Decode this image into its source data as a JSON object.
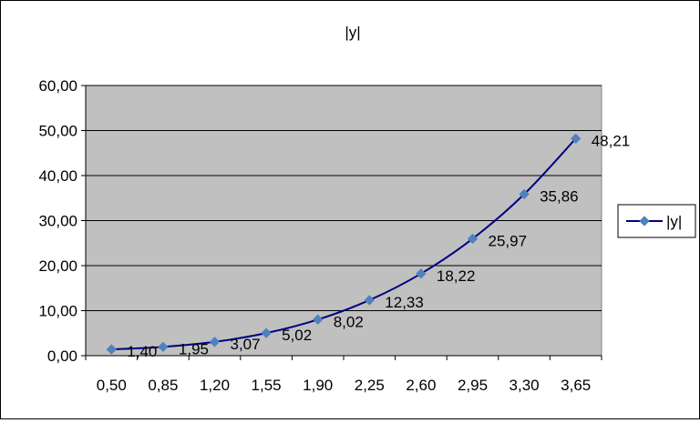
{
  "chart_data": {
    "type": "line",
    "title": "|y|",
    "xlabel": "",
    "ylabel": "",
    "categories": [
      "0,50",
      "0,85",
      "1,20",
      "1,55",
      "1,90",
      "2,25",
      "2,60",
      "2,95",
      "3,30",
      "3,65"
    ],
    "x": [
      0.5,
      0.85,
      1.2,
      1.55,
      1.9,
      2.25,
      2.6,
      2.95,
      3.3,
      3.65
    ],
    "series": [
      {
        "name": "|y|",
        "values": [
          1.4,
          1.95,
          3.07,
          5.02,
          8.02,
          12.33,
          18.22,
          25.97,
          35.86,
          48.21
        ],
        "labels": [
          "1,40",
          "1,95",
          "3,07",
          "5,02",
          "8,02",
          "12,33",
          "18,22",
          "25,97",
          "35,86",
          "48,21"
        ]
      }
    ],
    "ylim": [
      0,
      60
    ],
    "yticks": [
      0,
      10,
      20,
      30,
      40,
      50,
      60
    ],
    "yticklabels": [
      "0,00",
      "10,00",
      "20,00",
      "30,00",
      "40,00",
      "50,00",
      "60,00"
    ],
    "grid": true,
    "legend": "right",
    "colors": {
      "plot_background": "#C0C0C0",
      "line": "#000080",
      "marker": "#4F81BD"
    }
  }
}
